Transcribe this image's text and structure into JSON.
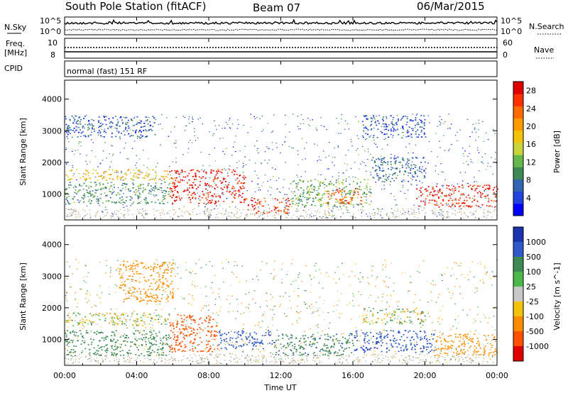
{
  "header": {
    "station": "South Pole Station (fitACF)",
    "beam": "Beam 07",
    "date": "06/Mar/2015"
  },
  "noise_panel": {
    "left_label": "N.Sky",
    "right_label": "N.Search",
    "ticks_left": [
      "10^5",
      "10^0"
    ],
    "ticks_right": [
      "10^5",
      "10^0"
    ]
  },
  "freq_panel": {
    "left_label_1": "Freq.",
    "left_label_2": "[MHz]",
    "right_label": "Nave",
    "ticks_left": [
      "10",
      "8"
    ],
    "ticks_right": [
      "60",
      "0"
    ]
  },
  "cpid_panel": {
    "label": "CPID",
    "text": "normal (fast) 151 RF"
  },
  "chart_data": [
    {
      "type": "heatmap",
      "title": "Power",
      "ylabel": "Slant Range [km]",
      "xlabel": "Time UT",
      "x_ticks": [
        "00:00",
        "04:00",
        "08:00",
        "12:00",
        "16:00",
        "20:00",
        "00:00"
      ],
      "xlim_hours": [
        0,
        24
      ],
      "y_ticks": [
        1000,
        2000,
        3000,
        4000
      ],
      "ylim": [
        180,
        4600
      ],
      "colorbar": {
        "label": "Power [dB]",
        "ticks": [
          4,
          8,
          12,
          16,
          20,
          24,
          28
        ],
        "range": [
          0,
          30
        ],
        "colors": [
          "#0000ff",
          "#2244dd",
          "#3366b0",
          "#3e8a55",
          "#66b84a",
          "#c8d43a",
          "#f4c20d",
          "#ff9a00",
          "#ff6a00",
          "#ff3000",
          "#e00000"
        ]
      },
      "features": [
        {
          "t0": 0.0,
          "t1": 5.8,
          "r0": 1450,
          "r1": 1800,
          "level": 18
        },
        {
          "t0": 0.0,
          "t1": 5.8,
          "r0": 700,
          "r1": 1400,
          "level": 10
        },
        {
          "t0": 0.0,
          "t1": 5.0,
          "r0": 2800,
          "r1": 3500,
          "level": 6
        },
        {
          "t0": 5.8,
          "t1": 10.0,
          "r0": 700,
          "r1": 1800,
          "level": 28
        },
        {
          "t0": 10.0,
          "t1": 12.5,
          "r0": 400,
          "r1": 900,
          "level": 26
        },
        {
          "t0": 12.5,
          "t1": 17.0,
          "r0": 600,
          "r1": 1500,
          "level": 12
        },
        {
          "t0": 14.5,
          "t1": 16.5,
          "r0": 700,
          "r1": 1200,
          "level": 24
        },
        {
          "t0": 17.0,
          "t1": 20.0,
          "r0": 1400,
          "r1": 2200,
          "level": 7
        },
        {
          "t0": 19.5,
          "t1": 24.0,
          "r0": 600,
          "r1": 1300,
          "level": 27
        },
        {
          "t0": 16.5,
          "t1": 20.0,
          "r0": 2800,
          "r1": 3500,
          "level": 5
        }
      ]
    },
    {
      "type": "heatmap",
      "title": "Velocity",
      "ylabel": "Slant Range [km]",
      "xlabel": "Time UT",
      "x_ticks": [
        "00:00",
        "04:00",
        "08:00",
        "12:00",
        "16:00",
        "20:00",
        "00:00"
      ],
      "xlim_hours": [
        0,
        24
      ],
      "y_ticks": [
        1000,
        2000,
        3000,
        4000
      ],
      "ylim": [
        180,
        4600
      ],
      "colorbar": {
        "label": "Velocity [m s^-1]",
        "ticks": [
          1000,
          500,
          100,
          25,
          -25,
          -100,
          -500,
          -1000
        ],
        "colors": [
          "#1a33b0",
          "#2f59c8",
          "#3e8a55",
          "#4cb84a",
          "#c8c8c8",
          "#f4c20d",
          "#ff8c00",
          "#ff5000",
          "#e00000"
        ]
      },
      "features": [
        {
          "t0": 0.0,
          "t1": 5.8,
          "r0": 1450,
          "r1": 1850,
          "level": 0
        },
        {
          "t0": 0.0,
          "t1": 5.8,
          "r0": 500,
          "r1": 1300,
          "level": 300
        },
        {
          "t0": 3.0,
          "t1": 6.0,
          "r0": 2200,
          "r1": 3500,
          "level": -300
        },
        {
          "t0": 5.8,
          "t1": 8.5,
          "r0": 600,
          "r1": 1800,
          "level": -800
        },
        {
          "t0": 8.5,
          "t1": 11.5,
          "r0": 700,
          "r1": 1300,
          "level": 800
        },
        {
          "t0": 11.5,
          "t1": 16.0,
          "r0": 500,
          "r1": 1200,
          "level": 400
        },
        {
          "t0": 16.0,
          "t1": 20.5,
          "r0": 600,
          "r1": 1300,
          "level": 900
        },
        {
          "t0": 20.5,
          "t1": 24.0,
          "r0": 500,
          "r1": 1200,
          "level": -300
        },
        {
          "t0": 16.5,
          "t1": 20.0,
          "r0": 1500,
          "r1": 2000,
          "level": 0
        }
      ]
    }
  ]
}
